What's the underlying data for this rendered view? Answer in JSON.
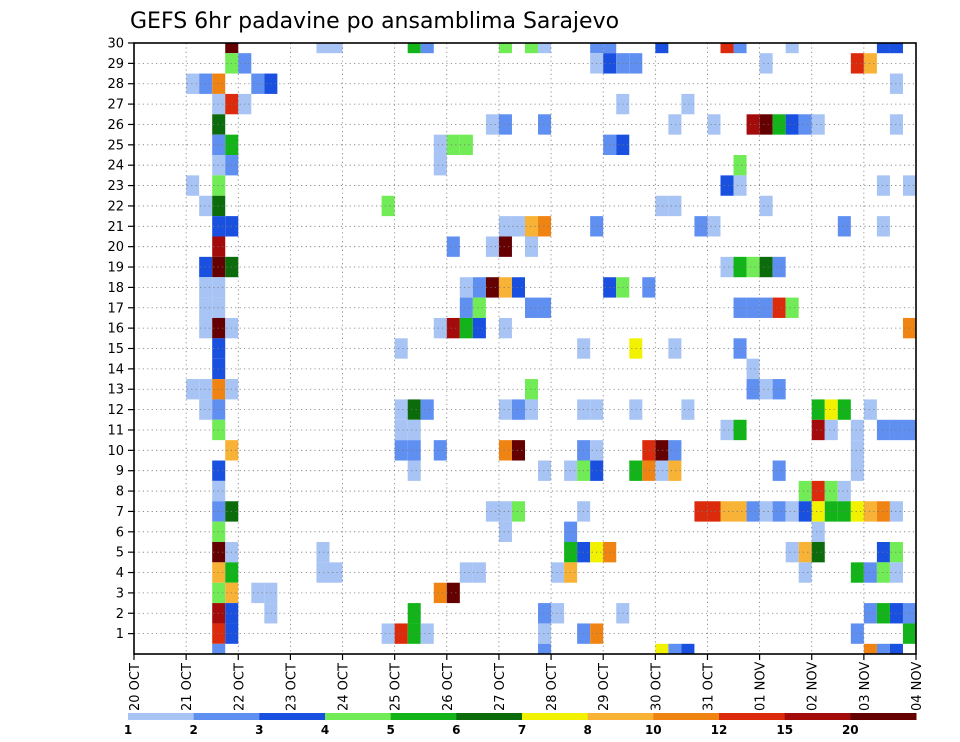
{
  "chart_data": {
    "type": "heatmap",
    "title": "GEFS 6hr padavine po ansamblima Sarajevo",
    "y_range": [
      0,
      30
    ],
    "y_ticks": [
      1,
      2,
      3,
      4,
      5,
      6,
      7,
      8,
      9,
      10,
      11,
      12,
      13,
      14,
      15,
      16,
      17,
      18,
      19,
      20,
      21,
      22,
      23,
      24,
      25,
      26,
      27,
      28,
      29,
      30
    ],
    "x_ticks": [
      "20 OCT",
      "21 OCT",
      "22 OCT",
      "23 OCT",
      "24 OCT",
      "25 OCT",
      "26 OCT",
      "27 OCT",
      "28 OCT",
      "29 OCT",
      "30 OCT",
      "31 OCT",
      "01 NOV",
      "02 NOV",
      "03 NOV",
      "04 NOV"
    ],
    "steps_per_day": 4,
    "grid": true,
    "colorbar": {
      "labels": [
        "1",
        "2",
        "3",
        "4",
        "5",
        "6",
        "7",
        "8",
        "10",
        "12",
        "15",
        "20"
      ],
      "colors": [
        "#a8c4f4",
        "#5f8ff0",
        "#1a50e0",
        "#72ec56",
        "#12b41a",
        "#0c6c0c",
        "#f2f200",
        "#f8b235",
        "#f08412",
        "#dc2a0c",
        "#a40c0c",
        "#640000"
      ]
    },
    "cells": [
      [
        30,
        7,
        11
      ],
      [
        30,
        14,
        0
      ],
      [
        30,
        15,
        0
      ],
      [
        30,
        21,
        4
      ],
      [
        30,
        22,
        1
      ],
      [
        30,
        28,
        3
      ],
      [
        30,
        30,
        3
      ],
      [
        30,
        31,
        0
      ],
      [
        30,
        35,
        1
      ],
      [
        30,
        36,
        1
      ],
      [
        30,
        40,
        2
      ],
      [
        30,
        45,
        9
      ],
      [
        30,
        46,
        1
      ],
      [
        30,
        50,
        0
      ],
      [
        30,
        57,
        2
      ],
      [
        30,
        58,
        2
      ],
      [
        29,
        7,
        3
      ],
      [
        29,
        8,
        1
      ],
      [
        29,
        35,
        0
      ],
      [
        29,
        36,
        2
      ],
      [
        29,
        37,
        1
      ],
      [
        29,
        38,
        1
      ],
      [
        29,
        48,
        0
      ],
      [
        29,
        55,
        9
      ],
      [
        29,
        56,
        7
      ],
      [
        28,
        4,
        0
      ],
      [
        28,
        5,
        1
      ],
      [
        28,
        6,
        8
      ],
      [
        28,
        9,
        1
      ],
      [
        28,
        10,
        2
      ],
      [
        28,
        58,
        0
      ],
      [
        27,
        6,
        0
      ],
      [
        27,
        7,
        9
      ],
      [
        27,
        8,
        0
      ],
      [
        27,
        37,
        0
      ],
      [
        27,
        42,
        0
      ],
      [
        26,
        6,
        5
      ],
      [
        26,
        27,
        0
      ],
      [
        26,
        28,
        1
      ],
      [
        26,
        31,
        1
      ],
      [
        26,
        41,
        0
      ],
      [
        26,
        44,
        0
      ],
      [
        26,
        47,
        10
      ],
      [
        26,
        48,
        11
      ],
      [
        26,
        49,
        4
      ],
      [
        26,
        50,
        2
      ],
      [
        26,
        51,
        1
      ],
      [
        26,
        52,
        0
      ],
      [
        26,
        58,
        0
      ],
      [
        25,
        6,
        1
      ],
      [
        25,
        7,
        4
      ],
      [
        25,
        23,
        0
      ],
      [
        25,
        24,
        3
      ],
      [
        25,
        25,
        3
      ],
      [
        25,
        36,
        1
      ],
      [
        25,
        37,
        2
      ],
      [
        24,
        6,
        0
      ],
      [
        24,
        7,
        1
      ],
      [
        24,
        23,
        0
      ],
      [
        24,
        46,
        3
      ],
      [
        23,
        4,
        0
      ],
      [
        23,
        6,
        3
      ],
      [
        23,
        45,
        2
      ],
      [
        23,
        46,
        0
      ],
      [
        23,
        57,
        0
      ],
      [
        23,
        59,
        0
      ],
      [
        22,
        5,
        0
      ],
      [
        22,
        6,
        5
      ],
      [
        22,
        19,
        3
      ],
      [
        22,
        40,
        0
      ],
      [
        22,
        41,
        0
      ],
      [
        22,
        48,
        0
      ],
      [
        21,
        6,
        2
      ],
      [
        21,
        7,
        2
      ],
      [
        21,
        28,
        0
      ],
      [
        21,
        29,
        0
      ],
      [
        21,
        30,
        7
      ],
      [
        21,
        31,
        8
      ],
      [
        21,
        35,
        1
      ],
      [
        21,
        43,
        1
      ],
      [
        21,
        44,
        0
      ],
      [
        21,
        54,
        1
      ],
      [
        21,
        57,
        0
      ],
      [
        20,
        6,
        10
      ],
      [
        20,
        24,
        1
      ],
      [
        20,
        27,
        0
      ],
      [
        20,
        28,
        11
      ],
      [
        20,
        30,
        0
      ],
      [
        19,
        5,
        2
      ],
      [
        19,
        6,
        11
      ],
      [
        19,
        7,
        5
      ],
      [
        19,
        45,
        0
      ],
      [
        19,
        46,
        4
      ],
      [
        19,
        47,
        3
      ],
      [
        19,
        48,
        5
      ],
      [
        19,
        49,
        1
      ],
      [
        18,
        5,
        0
      ],
      [
        18,
        6,
        0
      ],
      [
        18,
        25,
        0
      ],
      [
        18,
        26,
        1
      ],
      [
        18,
        27,
        11
      ],
      [
        18,
        28,
        7
      ],
      [
        18,
        29,
        2
      ],
      [
        18,
        36,
        2
      ],
      [
        18,
        37,
        3
      ],
      [
        18,
        39,
        1
      ],
      [
        17,
        5,
        0
      ],
      [
        17,
        6,
        0
      ],
      [
        17,
        25,
        1
      ],
      [
        17,
        26,
        3
      ],
      [
        17,
        30,
        1
      ],
      [
        17,
        31,
        1
      ],
      [
        17,
        46,
        1
      ],
      [
        17,
        47,
        1
      ],
      [
        17,
        48,
        1
      ],
      [
        17,
        49,
        9
      ],
      [
        17,
        50,
        3
      ],
      [
        16,
        5,
        0
      ],
      [
        16,
        6,
        11
      ],
      [
        16,
        7,
        0
      ],
      [
        16,
        23,
        0
      ],
      [
        16,
        24,
        10
      ],
      [
        16,
        25,
        4
      ],
      [
        16,
        26,
        2
      ],
      [
        16,
        28,
        0
      ],
      [
        16,
        59,
        8
      ],
      [
        16,
        60,
        3
      ],
      [
        15,
        6,
        2
      ],
      [
        15,
        20,
        0
      ],
      [
        15,
        34,
        0
      ],
      [
        15,
        38,
        6
      ],
      [
        15,
        41,
        0
      ],
      [
        15,
        46,
        1
      ],
      [
        14,
        6,
        2
      ],
      [
        14,
        47,
        0
      ],
      [
        13,
        4,
        0
      ],
      [
        13,
        5,
        0
      ],
      [
        13,
        6,
        8
      ],
      [
        13,
        7,
        0
      ],
      [
        13,
        30,
        3
      ],
      [
        13,
        47,
        1
      ],
      [
        13,
        48,
        0
      ],
      [
        13,
        49,
        1
      ],
      [
        12,
        5,
        0
      ],
      [
        12,
        6,
        1
      ],
      [
        12,
        20,
        0
      ],
      [
        12,
        21,
        5
      ],
      [
        12,
        22,
        1
      ],
      [
        12,
        28,
        0
      ],
      [
        12,
        29,
        1
      ],
      [
        12,
        30,
        0
      ],
      [
        12,
        34,
        0
      ],
      [
        12,
        35,
        0
      ],
      [
        12,
        38,
        0
      ],
      [
        12,
        42,
        0
      ],
      [
        12,
        52,
        4
      ],
      [
        12,
        53,
        6
      ],
      [
        12,
        54,
        4
      ],
      [
        12,
        56,
        0
      ],
      [
        11,
        6,
        3
      ],
      [
        11,
        20,
        0
      ],
      [
        11,
        21,
        0
      ],
      [
        11,
        45,
        0
      ],
      [
        11,
        46,
        4
      ],
      [
        11,
        52,
        10
      ],
      [
        11,
        53,
        0
      ],
      [
        11,
        55,
        0
      ],
      [
        11,
        57,
        1
      ],
      [
        11,
        58,
        1
      ],
      [
        11,
        59,
        1
      ],
      [
        10,
        7,
        7
      ],
      [
        10,
        20,
        1
      ],
      [
        10,
        21,
        1
      ],
      [
        10,
        23,
        1
      ],
      [
        10,
        28,
        8
      ],
      [
        10,
        29,
        11
      ],
      [
        10,
        34,
        1
      ],
      [
        10,
        35,
        0
      ],
      [
        10,
        39,
        9
      ],
      [
        10,
        40,
        11
      ],
      [
        10,
        41,
        1
      ],
      [
        10,
        55,
        0
      ],
      [
        9,
        6,
        2
      ],
      [
        9,
        21,
        0
      ],
      [
        9,
        31,
        0
      ],
      [
        9,
        33,
        0
      ],
      [
        9,
        34,
        3
      ],
      [
        9,
        35,
        2
      ],
      [
        9,
        38,
        4
      ],
      [
        9,
        39,
        8
      ],
      [
        9,
        40,
        0
      ],
      [
        9,
        41,
        7
      ],
      [
        9,
        49,
        1
      ],
      [
        9,
        55,
        0
      ],
      [
        8,
        6,
        0
      ],
      [
        8,
        51,
        3
      ],
      [
        8,
        52,
        9
      ],
      [
        8,
        53,
        3
      ],
      [
        8,
        54,
        0
      ],
      [
        7,
        6,
        1
      ],
      [
        7,
        7,
        5
      ],
      [
        7,
        27,
        0
      ],
      [
        7,
        28,
        0
      ],
      [
        7,
        29,
        3
      ],
      [
        7,
        34,
        0
      ],
      [
        7,
        43,
        9
      ],
      [
        7,
        44,
        9
      ],
      [
        7,
        45,
        7
      ],
      [
        7,
        46,
        7
      ],
      [
        7,
        47,
        1
      ],
      [
        7,
        48,
        0
      ],
      [
        7,
        49,
        1
      ],
      [
        7,
        50,
        0
      ],
      [
        7,
        51,
        2
      ],
      [
        7,
        52,
        6
      ],
      [
        7,
        53,
        4
      ],
      [
        7,
        54,
        4
      ],
      [
        7,
        55,
        6
      ],
      [
        7,
        56,
        7
      ],
      [
        7,
        57,
        8
      ],
      [
        7,
        58,
        0
      ],
      [
        6,
        6,
        3
      ],
      [
        6,
        28,
        0
      ],
      [
        6,
        33,
        1
      ],
      [
        6,
        52,
        0
      ],
      [
        5,
        6,
        11
      ],
      [
        5,
        7,
        0
      ],
      [
        5,
        14,
        0
      ],
      [
        5,
        33,
        4
      ],
      [
        5,
        34,
        2
      ],
      [
        5,
        35,
        6
      ],
      [
        5,
        36,
        8
      ],
      [
        5,
        50,
        0
      ],
      [
        5,
        51,
        7
      ],
      [
        5,
        52,
        5
      ],
      [
        5,
        57,
        2
      ],
      [
        5,
        58,
        3
      ],
      [
        4,
        6,
        7
      ],
      [
        4,
        7,
        4
      ],
      [
        4,
        14,
        0
      ],
      [
        4,
        15,
        0
      ],
      [
        4,
        25,
        0
      ],
      [
        4,
        26,
        0
      ],
      [
        4,
        32,
        0
      ],
      [
        4,
        33,
        7
      ],
      [
        4,
        51,
        0
      ],
      [
        4,
        55,
        4
      ],
      [
        4,
        56,
        1
      ],
      [
        4,
        57,
        3
      ],
      [
        4,
        58,
        0
      ],
      [
        3,
        6,
        3
      ],
      [
        3,
        7,
        7
      ],
      [
        3,
        9,
        0
      ],
      [
        3,
        10,
        0
      ],
      [
        3,
        23,
        8
      ],
      [
        3,
        24,
        11
      ],
      [
        2,
        6,
        10
      ],
      [
        2,
        7,
        2
      ],
      [
        2,
        10,
        0
      ],
      [
        2,
        21,
        4
      ],
      [
        2,
        31,
        1
      ],
      [
        2,
        32,
        0
      ],
      [
        2,
        37,
        0
      ],
      [
        2,
        56,
        1
      ],
      [
        2,
        57,
        4
      ],
      [
        2,
        58,
        2
      ],
      [
        2,
        59,
        1
      ],
      [
        2,
        60,
        9
      ],
      [
        1,
        6,
        9
      ],
      [
        1,
        7,
        2
      ],
      [
        1,
        19,
        0
      ],
      [
        1,
        20,
        9
      ],
      [
        1,
        21,
        4
      ],
      [
        1,
        22,
        0
      ],
      [
        1,
        31,
        0
      ],
      [
        1,
        34,
        1
      ],
      [
        1,
        35,
        8
      ],
      [
        1,
        55,
        1
      ],
      [
        1,
        59,
        4
      ],
      [
        1,
        60,
        5
      ],
      [
        0,
        6,
        1
      ],
      [
        0,
        31,
        1
      ],
      [
        0,
        40,
        6
      ],
      [
        0,
        41,
        1
      ],
      [
        0,
        42,
        2
      ],
      [
        0,
        56,
        8
      ],
      [
        0,
        57,
        1
      ],
      [
        0,
        58,
        2
      ]
    ]
  }
}
